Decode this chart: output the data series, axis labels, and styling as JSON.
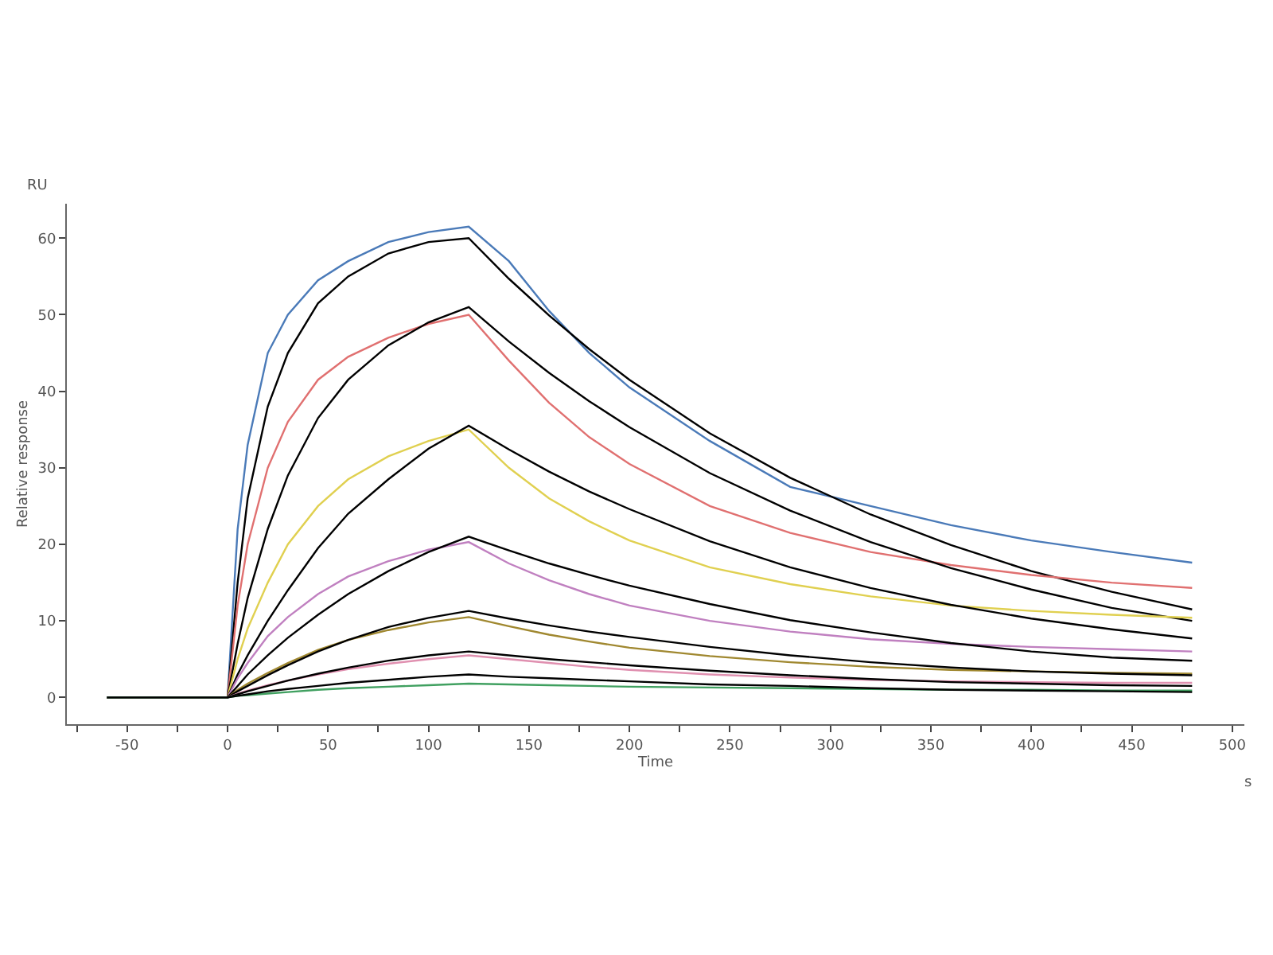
{
  "chart_data": {
    "type": "line",
    "xlabel": "Time",
    "ylabel": "Relative response",
    "annotations": [
      "RU",
      "s"
    ],
    "x": [
      -60,
      0,
      5,
      10,
      20,
      30,
      45,
      60,
      80,
      100,
      120,
      140,
      160,
      180,
      200,
      240,
      280,
      320,
      360,
      400,
      440,
      480
    ],
    "xlim": [
      -80,
      506
    ],
    "ylim": [
      -3.5,
      64.5
    ],
    "xticks": [
      {
        "value": -75,
        "label": null
      },
      -50,
      {
        "value": -25,
        "label": null
      },
      0,
      {
        "value": 25,
        "label": null
      },
      50,
      {
        "value": 75,
        "label": null
      },
      100,
      {
        "value": 125,
        "label": null
      },
      150,
      {
        "value": 175,
        "label": null
      },
      200,
      {
        "value": 225,
        "label": null
      },
      250,
      {
        "value": 275,
        "label": null
      },
      300,
      {
        "value": 325,
        "label": null
      },
      350,
      {
        "value": 375,
        "label": null
      },
      400,
      {
        "value": 425,
        "label": null
      },
      450,
      {
        "value": 475,
        "label": null
      },
      500
    ],
    "yticks": [
      0,
      10,
      20,
      30,
      40,
      50,
      60
    ],
    "marker": "none",
    "line_style": "solid",
    "series": [
      {
        "color": "#4a7ab8",
        "values": [
          0,
          0,
          22,
          33,
          45,
          50,
          54.5,
          57,
          59.5,
          60.8,
          61.5,
          57,
          50.5,
          45,
          40.5,
          33.5,
          27.5,
          25,
          22.5,
          20.5,
          19,
          17.6
        ]
      },
      {
        "color": "#000000",
        "values": [
          0,
          0,
          15,
          26,
          38,
          45,
          51.5,
          55,
          58,
          59.5,
          60,
          54.7,
          49.9,
          45.5,
          41.5,
          34.5,
          28.7,
          23.9,
          19.9,
          16.5,
          13.8,
          11.5
        ]
      },
      {
        "color": "#e07070",
        "values": [
          0,
          0,
          12,
          20,
          30,
          36,
          41.5,
          44.5,
          47,
          48.8,
          50,
          44,
          38.5,
          34,
          30.5,
          25,
          21.5,
          19,
          17.3,
          16,
          15,
          14.3
        ]
      },
      {
        "color": "#000000",
        "values": [
          0,
          0,
          7,
          13,
          22,
          29,
          36.5,
          41.5,
          46,
          49,
          51,
          46.5,
          42.4,
          38.7,
          35.3,
          29.3,
          24.4,
          20.3,
          16.9,
          14.1,
          11.7,
          10
        ]
      },
      {
        "color": "#e0d050",
        "values": [
          0,
          0,
          5,
          9,
          15,
          20,
          25,
          28.5,
          31.5,
          33.5,
          35,
          30,
          26,
          23,
          20.5,
          17,
          14.8,
          13.2,
          12,
          11.3,
          10.8,
          10.4
        ]
      },
      {
        "color": "#000000",
        "values": [
          0,
          0,
          3,
          5.5,
          10,
          14,
          19.5,
          24,
          28.5,
          32.5,
          35.5,
          32.4,
          29.5,
          26.9,
          24.6,
          20.4,
          17,
          14.3,
          12.1,
          10.3,
          8.9,
          7.7
        ]
      },
      {
        "color": "#c080c0",
        "values": [
          0,
          0,
          2.5,
          4.5,
          8,
          10.5,
          13.5,
          15.8,
          17.8,
          19.3,
          20.3,
          17.5,
          15.3,
          13.5,
          12,
          10,
          8.6,
          7.6,
          7,
          6.6,
          6.3,
          6
        ]
      },
      {
        "color": "#000000",
        "values": [
          0,
          0,
          1.5,
          3,
          5.5,
          7.8,
          10.8,
          13.5,
          16.5,
          19,
          21,
          19.2,
          17.5,
          16,
          14.6,
          12.2,
          10.1,
          8.5,
          7.1,
          6,
          5.2,
          4.8
        ]
      },
      {
        "color": "#a08830",
        "values": [
          0,
          0,
          1,
          1.8,
          3.2,
          4.5,
          6.2,
          7.5,
          8.8,
          9.8,
          10.5,
          9.3,
          8.2,
          7.3,
          6.5,
          5.4,
          4.6,
          4,
          3.6,
          3.4,
          3.2,
          3.1
        ]
      },
      {
        "color": "#000000",
        "values": [
          0,
          0,
          0.8,
          1.5,
          2.9,
          4.2,
          6,
          7.5,
          9.2,
          10.4,
          11.3,
          10.3,
          9.4,
          8.6,
          7.9,
          6.6,
          5.5,
          4.6,
          3.9,
          3.4,
          3.1,
          2.9
        ]
      },
      {
        "color": "#e090b0",
        "values": [
          0,
          0,
          0.5,
          0.9,
          1.6,
          2.2,
          3,
          3.7,
          4.4,
          5,
          5.5,
          5,
          4.5,
          4,
          3.6,
          3,
          2.6,
          2.3,
          2.1,
          2,
          1.9,
          1.9
        ]
      },
      {
        "color": "#000000",
        "values": [
          0,
          0,
          0.4,
          0.8,
          1.5,
          2.2,
          3.1,
          3.9,
          4.8,
          5.5,
          6,
          5.5,
          5,
          4.6,
          4.2,
          3.5,
          2.9,
          2.4,
          2,
          1.8,
          1.6,
          1.5
        ]
      },
      {
        "color": "#40a060",
        "values": [
          0,
          0,
          0.2,
          0.3,
          0.5,
          0.7,
          1,
          1.2,
          1.4,
          1.6,
          1.8,
          1.7,
          1.6,
          1.5,
          1.4,
          1.3,
          1.2,
          1.1,
          1,
          1,
          0.9,
          0.9
        ]
      },
      {
        "color": "#000000",
        "values": [
          0,
          0,
          0.2,
          0.4,
          0.8,
          1.1,
          1.5,
          1.9,
          2.3,
          2.7,
          3,
          2.7,
          2.5,
          2.3,
          2.1,
          1.7,
          1.5,
          1.2,
          1,
          0.9,
          0.8,
          0.7
        ]
      }
    ]
  }
}
